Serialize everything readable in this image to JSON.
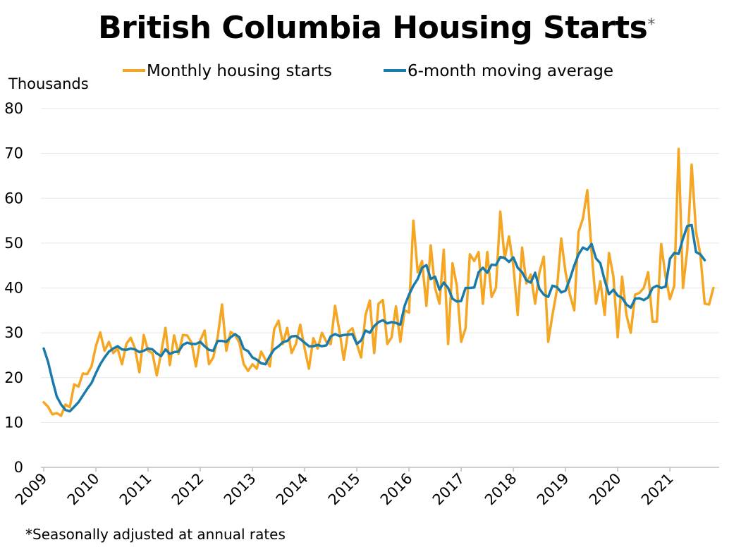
{
  "chart_data": {
    "type": "line",
    "title": "British Columbia Housing Starts",
    "title_mark": "*",
    "ylabel": "Thousands",
    "ylim": [
      0,
      80
    ],
    "yticks": [
      0,
      10,
      20,
      30,
      40,
      50,
      60,
      70,
      80
    ],
    "xticks": [
      "2009",
      "2010",
      "2011",
      "2012",
      "2013",
      "2014",
      "2015",
      "2016",
      "2017",
      "2018",
      "2019",
      "2020",
      "2021"
    ],
    "x_start": "2009-01",
    "x_end": "2021-12",
    "grid": true,
    "legend_position": "top",
    "footnote": "*Seasonally adjusted at annual rates",
    "series": [
      {
        "name": "Monthly housing starts",
        "color": "#F5A623",
        "values": [
          14.5,
          13.5,
          11.8,
          12.1,
          11.5,
          14,
          13.4,
          18.5,
          18,
          20.9,
          20.8,
          22.5,
          27,
          30.1,
          26,
          28,
          25.5,
          26.5,
          23,
          27.5,
          28.9,
          26.5,
          21.2,
          29.5,
          26,
          25.5,
          20.5,
          25.5,
          31.1,
          22.8,
          29.4,
          25.3,
          29.5,
          29.4,
          27.8,
          22.5,
          28.3,
          30.5,
          23,
          24.5,
          29,
          36.3,
          26,
          30.2,
          29.5,
          27.8,
          23,
          21.5,
          23,
          22,
          25.8,
          24,
          22.5,
          30.8,
          32.7,
          27.5,
          31.1,
          25.5,
          27.5,
          31.8,
          26.5,
          22,
          28.8,
          26.5,
          30,
          28,
          27.5,
          36,
          30.5,
          24,
          30.2,
          31,
          27.5,
          24.5,
          34,
          37.2,
          25.5,
          36.5,
          37.3,
          27.5,
          29,
          35.9,
          28,
          35,
          34.5,
          55,
          43.5,
          46,
          36,
          49.5,
          40,
          36.5,
          48.5,
          27.5,
          45.5,
          40.5,
          28,
          31,
          47.5,
          46,
          48,
          36.5,
          48,
          38,
          40,
          57,
          46.5,
          51.5,
          45,
          34,
          49,
          41,
          43,
          36.5,
          43.5,
          47,
          28,
          34,
          39.5,
          51,
          43.5,
          38.5,
          35,
          52.5,
          55.5,
          61.8,
          48,
          36.5,
          41.5,
          34,
          47.8,
          42.5,
          29,
          42.5,
          34,
          30,
          38.5,
          38.9,
          40,
          43.5,
          32.5,
          32.5,
          49.8,
          42.5,
          37.5,
          40.5,
          71,
          40,
          48.5,
          67.5,
          52.5,
          47.5,
          36.5,
          36.3,
          40
        ]
      },
      {
        "name": "6-month moving average",
        "color": "#1A7BAA",
        "values": [
          26.5,
          23.5,
          19.5,
          15.8,
          14,
          12.8,
          12.5,
          13.5,
          14.5,
          16,
          17.5,
          18.8,
          21,
          23,
          24.5,
          25.8,
          26.5,
          27,
          26.3,
          26.2,
          26.5,
          26.3,
          25.7,
          26,
          26.5,
          26.3,
          25.4,
          24.8,
          26.3,
          25.3,
          25.7,
          25.8,
          27.3,
          27.8,
          27.5,
          27.5,
          28,
          27,
          26.2,
          26,
          28.2,
          28.2,
          28,
          29,
          29.7,
          29,
          26.4,
          25.9,
          24.5,
          24,
          23.2,
          23,
          24.8,
          26.3,
          27,
          27.9,
          28.2,
          29.2,
          29.3,
          28.6,
          27.8,
          27,
          27,
          27.3,
          27,
          27.2,
          29.2,
          29.7,
          29.3,
          29.5,
          29.6,
          29.7,
          27.5,
          28.3,
          30.5,
          30,
          31.5,
          32.4,
          32.8,
          32.1,
          32.4,
          32.2,
          31.8,
          36,
          38.5,
          40.5,
          42,
          44.5,
          45.1,
          42,
          42.5,
          39.6,
          41.2,
          40,
          37.6,
          37,
          37.1,
          40,
          40,
          40.1,
          43.5,
          44.5,
          43.4,
          45.2,
          45.1,
          46.9,
          46.7,
          45.8,
          46.8,
          44.5,
          43.5,
          41.7,
          41.2,
          43.4,
          39.8,
          38.5,
          38,
          40.5,
          40.2,
          39,
          39.4,
          42,
          45,
          47.5,
          49,
          48.5,
          49.8,
          46.6,
          45.5,
          41.7,
          38.6,
          39.6,
          38.3,
          37.8,
          36.3,
          35.6,
          37.6,
          37.7,
          37.3,
          37.9,
          40,
          40.5,
          40,
          40.3,
          46.5,
          47.8,
          47.6,
          51,
          53.8,
          54,
          48,
          47.5,
          46.2
        ]
      }
    ]
  }
}
